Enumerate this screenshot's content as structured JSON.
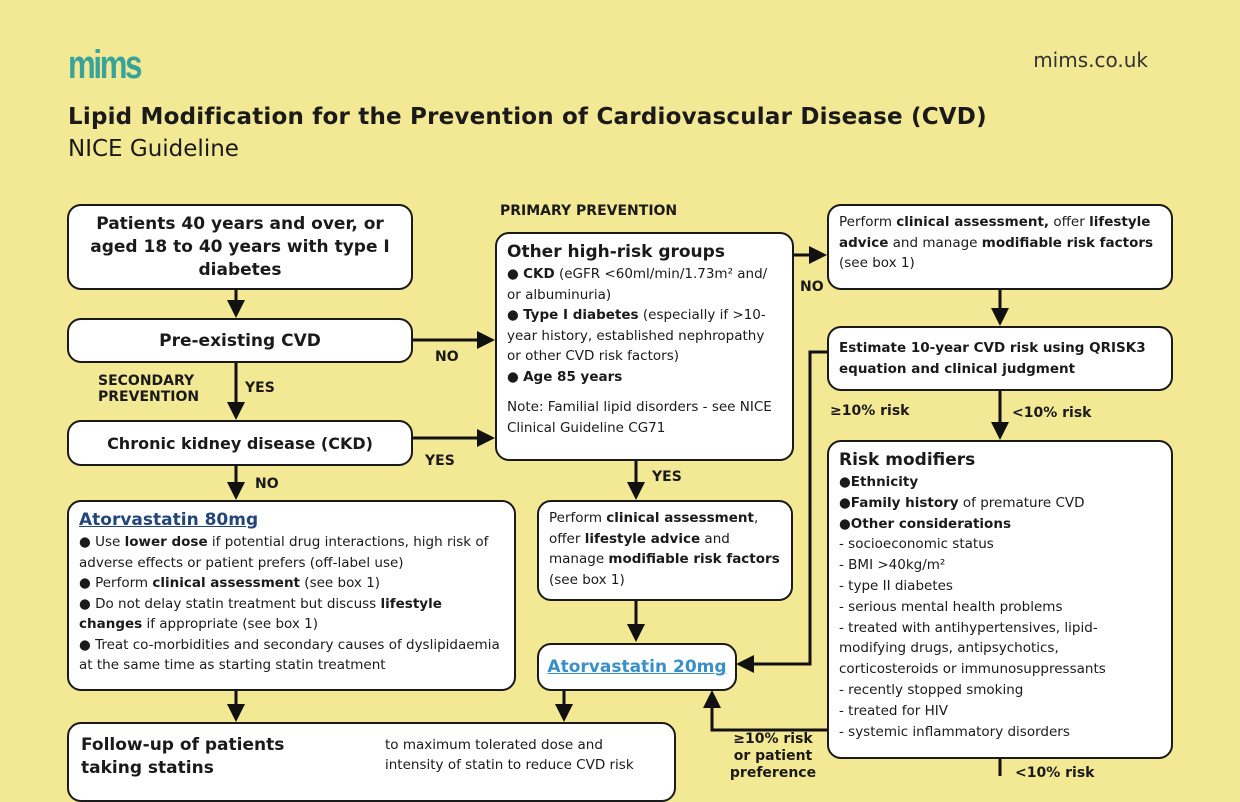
{
  "header": {
    "logo": "mims",
    "site": "mims.co.uk",
    "title": "Lipid Modification for the Prevention of Cardiovascular Disease (CVD)",
    "subtitle": "NICE Guideline"
  },
  "colors": {
    "background": "#f3e893",
    "logo": "#38a39a",
    "link_dark": "#23467a",
    "link_light": "#3a8fc8"
  },
  "labels": {
    "primary": "PRIMARY PREVENTION",
    "secondary_1": "SECONDARY",
    "secondary_2": "PREVENTION",
    "no1": "NO",
    "yes1": "YES",
    "yes2": "YES",
    "no2": "NO",
    "no3": "NO",
    "yes3": "YES",
    "ge10": "≥10% risk",
    "lt10": "<10% risk",
    "ge10b_1": "≥10% risk",
    "ge10b_2": "or patient",
    "ge10b_3": "preference",
    "lt10b": "<10% risk"
  },
  "boxes": {
    "patients": "Patients 40 years and over, or aged 18 to 40 years with type I diabetes",
    "preexisting": "Pre-existing CVD",
    "ckd": "Chronic kidney disease (CKD)",
    "ator80": {
      "title": "Atorvastatin 80mg",
      "b1a": "Use ",
      "b1b": "lower dose",
      "b1c": " if potential drug interactions, high risk of adverse effects or patient prefers (off-label use)",
      "b2a": "Perform ",
      "b2b": "clinical assessment",
      "b2c": " (see box 1)",
      "b3a": "Do not delay statin treatment but discuss ",
      "b3b": "lifestyle changes",
      "b3c": " if appropriate (see box 1)",
      "b4": "Treat co-morbidities and secondary causes of dyslipidaemia at the same time as starting statin treatment"
    },
    "highrisk": {
      "title": "Other high-risk groups",
      "ckd_b": "CKD",
      "ckd_t": " (eGFR <60ml/min/1.73m² and/ or albuminuria)",
      "t1_b": "Type I diabetes",
      "t1_t": " (especially if >10-year history, established nephropathy or other CVD risk factors)",
      "age": "Age 85 years",
      "note": "Note: Familial lipid disorders - see NICE Clinical Guideline CG71"
    },
    "assess_top": {
      "a": "Perform ",
      "b": "clinical assessment,",
      "c": " offer ",
      "d": "lifestyle advice",
      "e": " and manage ",
      "f": "modifiable risk factors",
      "g": " (see box 1)"
    },
    "estimate": "Estimate 10-year CVD risk using QRISK3 equation and clinical judgment",
    "assess_mid": {
      "a": "Perform ",
      "b": "clinical assessment",
      "c": ", offer ",
      "d": "lifestyle advice",
      "e": " and manage ",
      "f": "modifiable risk factors",
      "g": " (see box 1)"
    },
    "ator20": "Atorvastatin 20mg",
    "modifiers": {
      "title": "Risk modifiers",
      "b1": "Ethnicity",
      "b2a": "Family history",
      "b2b": " of premature CVD",
      "b3": "Other considerations",
      "items": [
        "- socioeconomic status",
        "- BMI >40kg/m²",
        "- type II diabetes",
        "- serious mental health problems",
        "- treated with antihypertensives, lipid-modifying drugs, antipsychotics, corticosteroids or immunosuppressants",
        "- recently stopped smoking",
        "- treated for HIV",
        "- systemic inflammatory disorders"
      ]
    },
    "followup": {
      "title": "Follow-up of patients taking statins",
      "text": "to maximum tolerated dose and intensity of statin to reduce CVD risk"
    }
  }
}
